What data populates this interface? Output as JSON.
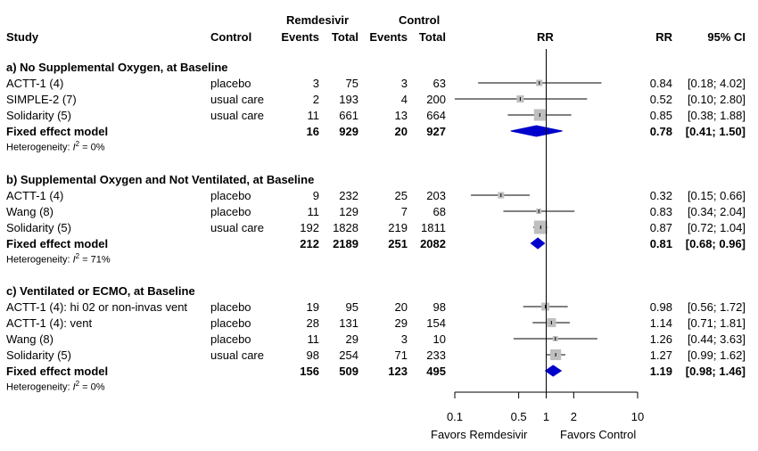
{
  "chart_data": {
    "type": "forest",
    "headers": {
      "group_remdesivir": "Remdesivir",
      "group_control": "Control",
      "study": "Study",
      "control": "Control",
      "events": "Events",
      "total": "Total",
      "plot": "RR",
      "rr": "RR",
      "ci": "95% CI"
    },
    "x_scale": "log",
    "x_ticks": [
      {
        "value": 0.1,
        "label": "0.1"
      },
      {
        "value": 0.5,
        "label": "0.5"
      },
      {
        "value": 1,
        "label": "1"
      },
      {
        "value": 2,
        "label": "2"
      },
      {
        "value": 10,
        "label": "10"
      }
    ],
    "xlim": [
      0.1,
      10
    ],
    "left_label": "Favors Remdesivir",
    "right_label": "Favors Control",
    "colors": {
      "diamond": "#0000cc",
      "square": "#bfbfbf"
    },
    "sections": [
      {
        "title": "a) No Supplemental Oxygen, at Baseline",
        "studies": [
          {
            "study": "ACTT-1 (4)",
            "control": "placebo",
            "ev_r": "3",
            "tot_r": "75",
            "ev_c": "3",
            "tot_c": "63",
            "rr": 0.84,
            "lo": 0.18,
            "hi": 4.02,
            "rr_text": "0.84",
            "ci_text": "[0.18; 4.02]",
            "weight": 0.1
          },
          {
            "study": "SIMPLE-2 (7)",
            "control": "usual care",
            "ev_r": "2",
            "tot_r": "193",
            "ev_c": "4",
            "tot_c": "200",
            "rr": 0.52,
            "lo": 0.1,
            "hi": 2.8,
            "rr_text": "0.52",
            "ci_text": "[0.10; 2.80]",
            "weight": 0.15
          },
          {
            "study": "Solidarity (5)",
            "control": "usual care",
            "ev_r": "11",
            "tot_r": "661",
            "ev_c": "13",
            "tot_c": "664",
            "rr": 0.85,
            "lo": 0.38,
            "hi": 1.88,
            "rr_text": "0.85",
            "ci_text": "[0.38; 1.88]",
            "weight": 0.6
          }
        ],
        "summary": {
          "label": "Fixed effect model",
          "ev_r": "16",
          "tot_r": "929",
          "ev_c": "20",
          "tot_c": "927",
          "rr": 0.78,
          "lo": 0.41,
          "hi": 1.5,
          "rr_text": "0.78",
          "ci_text": "[0.41; 1.50]"
        },
        "heterogeneity": {
          "prefix": "Heterogeneity: ",
          "i": "I",
          "sup": "2",
          "rest": " = 0%"
        }
      },
      {
        "title": "b) Supplemental Oxygen and Not Ventilated, at Baseline",
        "studies": [
          {
            "study": "ACTT-1 (4)",
            "control": "placebo",
            "ev_r": "9",
            "tot_r": "232",
            "ev_c": "25",
            "tot_c": "203",
            "rr": 0.32,
            "lo": 0.15,
            "hi": 0.66,
            "rr_text": "0.32",
            "ci_text": "[0.15; 0.66]",
            "weight": 0.1
          },
          {
            "study": "Wang (8)",
            "control": "placebo",
            "ev_r": "11",
            "tot_r": "129",
            "ev_c": "7",
            "tot_c": "68",
            "rr": 0.83,
            "lo": 0.34,
            "hi": 2.04,
            "rr_text": "0.83",
            "ci_text": "[0.34; 2.04]",
            "weight": 0.05
          },
          {
            "study": "Solidarity (5)",
            "control": "usual care",
            "ev_r": "192",
            "tot_r": "1828",
            "ev_c": "219",
            "tot_c": "1811",
            "rr": 0.87,
            "lo": 0.72,
            "hi": 1.04,
            "rr_text": "0.87",
            "ci_text": "[0.72; 1.04]",
            "weight": 0.85
          }
        ],
        "summary": {
          "label": "Fixed effect model",
          "ev_r": "212",
          "tot_r": "2189",
          "ev_c": "251",
          "tot_c": "2082",
          "rr": 0.81,
          "lo": 0.68,
          "hi": 0.96,
          "rr_text": "0.81",
          "ci_text": "[0.68; 0.96]"
        },
        "heterogeneity": {
          "prefix": "Heterogeneity: ",
          "i": "I",
          "sup": "2",
          "rest": " = 71%"
        }
      },
      {
        "title": "c) Ventilated or ECMO, at Baseline",
        "studies": [
          {
            "study": "ACTT-1 (4): hi 02 or non-invas vent",
            "control": "placebo",
            "ev_r": "19",
            "tot_r": "95",
            "ev_c": "20",
            "tot_c": "98",
            "rr": 0.98,
            "lo": 0.56,
            "hi": 1.72,
            "rr_text": "0.98",
            "ci_text": "[0.56; 1.72]",
            "weight": 0.2
          },
          {
            "study": "ACTT-1 (4): vent",
            "control": "placebo",
            "ev_r": "28",
            "tot_r": "131",
            "ev_c": "29",
            "tot_c": "154",
            "rr": 1.14,
            "lo": 0.71,
            "hi": 1.81,
            "rr_text": "1.14",
            "ci_text": "[0.71; 1.81]",
            "weight": 0.3
          },
          {
            "study": "Wang (8)",
            "control": "placebo",
            "ev_r": "11",
            "tot_r": "29",
            "ev_c": "3",
            "tot_c": "10",
            "rr": 1.26,
            "lo": 0.44,
            "hi": 3.63,
            "rr_text": "1.26",
            "ci_text": "[0.44; 3.63]",
            "weight": 0.05
          },
          {
            "study": "Solidarity (5)",
            "control": "usual care",
            "ev_r": "98",
            "tot_r": "254",
            "ev_c": "71",
            "tot_c": "233",
            "rr": 1.27,
            "lo": 0.99,
            "hi": 1.62,
            "rr_text": "1.27",
            "ci_text": "[0.99; 1.62]",
            "weight": 0.5
          }
        ],
        "summary": {
          "label": "Fixed effect model",
          "ev_r": "156",
          "tot_r": "509",
          "ev_c": "123",
          "tot_c": "495",
          "rr": 1.19,
          "lo": 0.98,
          "hi": 1.46,
          "rr_text": "1.19",
          "ci_text": "[0.98; 1.46]"
        },
        "heterogeneity": {
          "prefix": "Heterogeneity: ",
          "i": "I",
          "sup": "2",
          "rest": " = 0%"
        }
      }
    ]
  }
}
